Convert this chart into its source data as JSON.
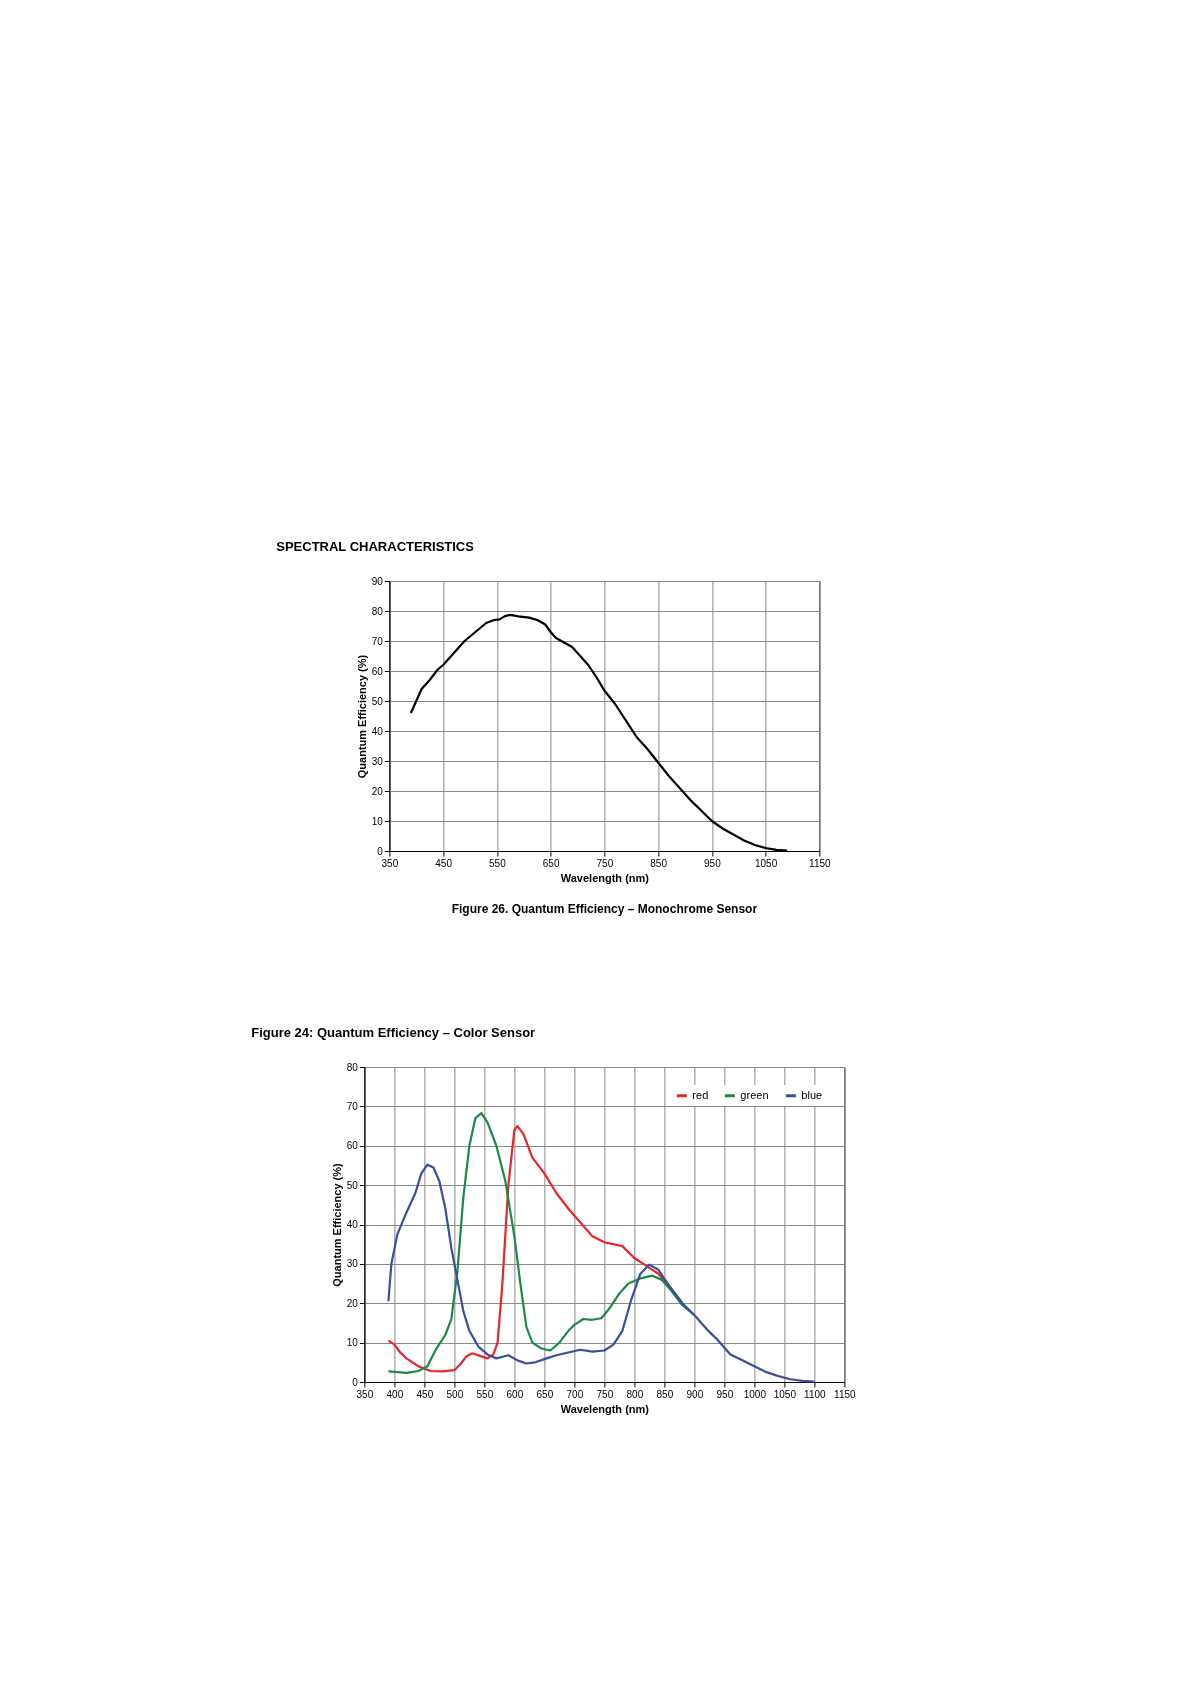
{
  "chart_data": [
    {
      "type": "line",
      "title": "SPECTRAL CHARACTERISTICS",
      "xlabel": "Wavelength (nm)",
      "ylabel": "Quantum Efficiency (%)",
      "annotations": [
        "Figure 26. Quantum Efficiency – Monochrome Sensor"
      ],
      "xlim": [
        350,
        1150
      ],
      "xticks": [
        350,
        450,
        550,
        650,
        750,
        850,
        950,
        1050,
        1150
      ],
      "ylim": [
        0,
        90
      ],
      "yticks": [
        0,
        10,
        20,
        30,
        40,
        50,
        60,
        70,
        80,
        90
      ],
      "grid": true,
      "line_style": "solid",
      "series": [
        {
          "color": "#000000",
          "x": [
            390,
            400,
            410,
            425,
            440,
            450,
            470,
            490,
            510,
            530,
            545,
            555,
            565,
            575,
            590,
            610,
            625,
            640,
            650,
            660,
            675,
            690,
            705,
            720,
            735,
            750,
            770,
            790,
            810,
            830,
            850,
            870,
            890,
            910,
            930,
            950,
            970,
            990,
            1010,
            1030,
            1050,
            1070,
            1090
          ],
          "values": [
            46,
            50,
            54,
            57,
            60.5,
            62,
            66,
            70,
            73,
            76,
            77,
            77.2,
            78.3,
            78.7,
            78.2,
            77.8,
            77,
            75.5,
            73,
            71,
            69.5,
            68,
            65,
            62,
            58,
            53.5,
            49,
            43.5,
            38,
            34,
            29.5,
            25,
            21,
            17,
            13.5,
            10,
            7.5,
            5.5,
            3.5,
            2,
            1,
            0.4,
            0.1
          ]
        }
      ]
    },
    {
      "type": "line",
      "title": "Figure 24:      Quantum Efficiency – Color Sensor",
      "xlabel": "Wavelength (nm)",
      "ylabel": "Quantum Efficiency (%)",
      "xlim": [
        350,
        1150
      ],
      "xticks": [
        350,
        400,
        450,
        500,
        550,
        600,
        650,
        700,
        750,
        800,
        850,
        900,
        950,
        1000,
        1050,
        1100,
        1150
      ],
      "ylim": [
        0,
        80
      ],
      "yticks": [
        0,
        10,
        20,
        30,
        40,
        50,
        60,
        70,
        80
      ],
      "grid": true,
      "legend": "top right",
      "line_style": "solid",
      "series": [
        {
          "name": "red",
          "color": "#e8262a",
          "x": [
            390,
            400,
            410,
            420,
            440,
            460,
            480,
            500,
            510,
            520,
            530,
            545,
            555,
            565,
            572,
            580,
            590,
            600,
            605,
            615,
            630,
            650,
            670,
            690,
            710,
            730,
            750,
            780,
            800,
            820,
            840,
            860,
            880
          ],
          "values": [
            10.5,
            9.5,
            7.5,
            6,
            4,
            2.8,
            2.7,
            3,
            4.5,
            6.5,
            7.3,
            6.5,
            6,
            7,
            10,
            25,
            50,
            64,
            65,
            63,
            57,
            53,
            48,
            44,
            40.5,
            37,
            35.5,
            34.5,
            31.5,
            29.5,
            27.5,
            24,
            20
          ]
        },
        {
          "name": "green",
          "color": "#1a8a4a",
          "x": [
            390,
            420,
            440,
            455,
            470,
            485,
            495,
            505,
            515,
            525,
            535,
            545,
            555,
            570,
            585,
            600,
            610,
            620,
            630,
            645,
            660,
            675,
            690,
            700,
            715,
            730,
            745,
            760,
            775,
            790,
            810,
            830,
            845,
            860,
            880,
            900
          ],
          "values": [
            2.7,
            2.3,
            2.8,
            4,
            8.5,
            12,
            16,
            28,
            47,
            60,
            67,
            68.3,
            66,
            60,
            51,
            37,
            25,
            14,
            10,
            8.5,
            8,
            10,
            13,
            14.5,
            16,
            15.8,
            16.2,
            19,
            22.5,
            25,
            26.3,
            27,
            26,
            23.5,
            19.5,
            17
          ]
        },
        {
          "name": "blue",
          "color": "#3a4da0",
          "x": [
            390,
            395,
            405,
            420,
            435,
            445,
            455,
            465,
            475,
            485,
            495,
            505,
            515,
            525,
            540,
            555,
            570,
            590,
            605,
            620,
            635,
            650,
            670,
            690,
            710,
            730,
            750,
            765,
            780,
            795,
            810,
            825,
            840,
            860,
            880,
            900,
            920,
            940,
            960,
            980,
            1000,
            1020,
            1040,
            1060,
            1080,
            1100
          ],
          "values": [
            20.5,
            30,
            37.5,
            43,
            48,
            53,
            55.2,
            54.5,
            51,
            44,
            34,
            26,
            18,
            13,
            9,
            7,
            6,
            6.8,
            5.5,
            4.7,
            5,
            5.8,
            6.8,
            7.5,
            8.2,
            7.7,
            8,
            9.5,
            13,
            21,
            27.5,
            29.8,
            28.5,
            24,
            20,
            17,
            13.5,
            10.5,
            7,
            5.5,
            4,
            2.5,
            1.5,
            0.7,
            0.3,
            0.1
          ]
        }
      ]
    }
  ]
}
